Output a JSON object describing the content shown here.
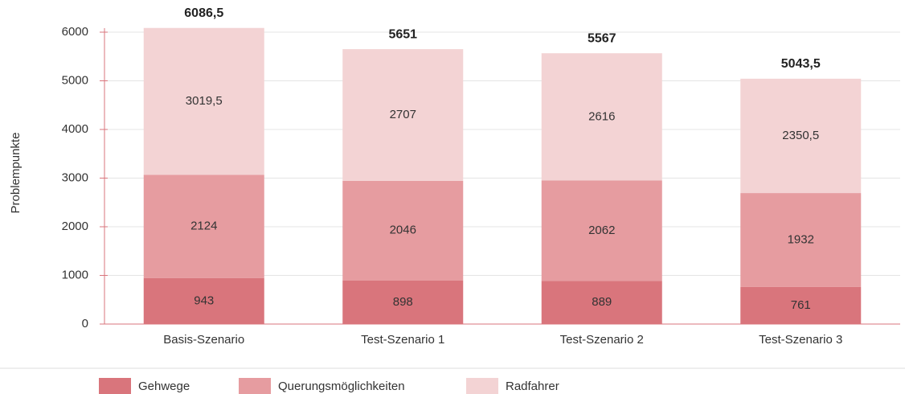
{
  "chart_data": {
    "type": "stacked-bar",
    "y_label": "Problempunkte",
    "categories": [
      "Basis-Szenario",
      "Test-Szenario 1",
      "Test-Szenario 2",
      "Test-Szenario 3"
    ],
    "series": [
      {
        "name": "Gehwege",
        "color": "#d9757c",
        "values": [
          943,
          898,
          889,
          761
        ]
      },
      {
        "name": "Querungsmöglichkeiten",
        "color": "#e69ca0",
        "values": [
          2124,
          2046,
          2062,
          1932
        ]
      },
      {
        "name": "Radfahrer",
        "color": "#f3d3d4",
        "values": [
          3019.5,
          2707,
          2616,
          2350.5
        ],
        "value_labels": [
          "3019,5",
          "2707",
          "2616",
          "2350,5"
        ]
      }
    ],
    "totals": {
      "values": [
        6086.5,
        5651,
        5567,
        5043.5
      ],
      "value_labels": [
        "6086,5",
        "5651",
        "5567",
        "5043,5"
      ]
    },
    "ylim": [
      0,
      6000
    ],
    "yticks": [
      0,
      1000,
      2000,
      3000,
      4000,
      5000,
      6000
    ],
    "grid": true,
    "legend": "bottom"
  }
}
